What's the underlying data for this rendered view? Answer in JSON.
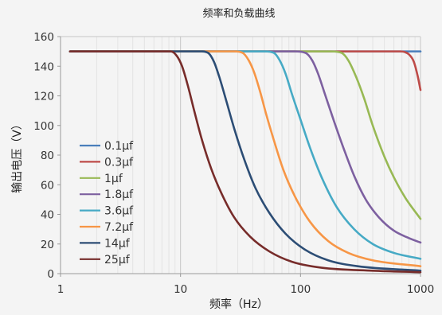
{
  "chart_data": {
    "type": "line",
    "title": "频率和负载曲线",
    "xlabel": "频率（Hz）",
    "ylabel": "输出电压（V）",
    "x_scale": "log",
    "xlim": [
      1,
      1000
    ],
    "ylim": [
      0,
      160
    ],
    "x_ticks": [
      1,
      10,
      100,
      1000
    ],
    "x_tick_labels": [
      "1",
      "10",
      "100",
      "1000"
    ],
    "y_ticks": [
      0,
      20,
      40,
      60,
      80,
      100,
      120,
      140,
      160
    ],
    "y_tick_labels": [
      "0",
      "20",
      "40",
      "60",
      "80",
      "100",
      "120",
      "140",
      "160"
    ],
    "grid": "vertical",
    "legend_position": "left-center",
    "series": [
      {
        "name": "0.1μf",
        "color": "#4a7ebb",
        "points": [
          [
            1.2,
            150
          ],
          [
            10,
            150
          ],
          [
            100,
            150
          ],
          [
            500,
            150
          ],
          [
            1000,
            150
          ]
        ]
      },
      {
        "name": "0.3μf",
        "color": "#be4b48",
        "points": [
          [
            1.2,
            150
          ],
          [
            100,
            150
          ],
          [
            500,
            150
          ],
          [
            680,
            150
          ],
          [
            800,
            148
          ],
          [
            880,
            143
          ],
          [
            950,
            133
          ],
          [
            1000,
            124
          ]
        ]
      },
      {
        "name": "1μf",
        "color": "#98b954",
        "points": [
          [
            1.2,
            150
          ],
          [
            100,
            150
          ],
          [
            180,
            150
          ],
          [
            220,
            149
          ],
          [
            250,
            144
          ],
          [
            290,
            133
          ],
          [
            340,
            118
          ],
          [
            400,
            100
          ],
          [
            500,
            79
          ],
          [
            600,
            65
          ],
          [
            750,
            51
          ],
          [
            1000,
            37
          ]
        ]
      },
      {
        "name": "1.8μf",
        "color": "#7d60a0",
        "points": [
          [
            1.2,
            150
          ],
          [
            90,
            150
          ],
          [
            110,
            149
          ],
          [
            125,
            144
          ],
          [
            140,
            135
          ],
          [
            160,
            121
          ],
          [
            190,
            103
          ],
          [
            230,
            84
          ],
          [
            280,
            66
          ],
          [
            350,
            50
          ],
          [
            450,
            38
          ],
          [
            600,
            29
          ],
          [
            800,
            24
          ],
          [
            1000,
            21
          ]
        ]
      },
      {
        "name": "3.6μf",
        "color": "#46aac5",
        "points": [
          [
            1.2,
            150
          ],
          [
            50,
            150
          ],
          [
            60,
            149
          ],
          [
            67,
            144
          ],
          [
            75,
            135
          ],
          [
            85,
            121
          ],
          [
            100,
            104
          ],
          [
            120,
            85
          ],
          [
            150,
            65
          ],
          [
            200,
            45
          ],
          [
            280,
            30
          ],
          [
            400,
            20
          ],
          [
            600,
            14
          ],
          [
            1000,
            10
          ]
        ]
      },
      {
        "name": "7.2μf",
        "color": "#f79646",
        "points": [
          [
            1.2,
            150
          ],
          [
            28,
            150
          ],
          [
            33,
            149
          ],
          [
            37,
            144
          ],
          [
            41,
            136
          ],
          [
            46,
            123
          ],
          [
            52,
            107
          ],
          [
            60,
            90
          ],
          [
            72,
            70
          ],
          [
            90,
            52
          ],
          [
            120,
            35
          ],
          [
            170,
            22
          ],
          [
            250,
            14
          ],
          [
            400,
            9
          ],
          [
            1000,
            5
          ]
        ]
      },
      {
        "name": "14μf",
        "color": "#2c4d75",
        "points": [
          [
            1.2,
            150
          ],
          [
            12,
            150
          ],
          [
            15,
            150
          ],
          [
            17,
            149
          ],
          [
            19,
            143
          ],
          [
            21,
            133
          ],
          [
            24,
            117
          ],
          [
            28,
            98
          ],
          [
            34,
            77
          ],
          [
            42,
            58
          ],
          [
            55,
            41
          ],
          [
            75,
            27
          ],
          [
            110,
            16
          ],
          [
            170,
            9
          ],
          [
            300,
            5
          ],
          [
            1000,
            2
          ]
        ]
      },
      {
        "name": "25μf",
        "color": "#772c2a",
        "points": [
          [
            1.2,
            150
          ],
          [
            7,
            150
          ],
          [
            8.3,
            150
          ],
          [
            9.3,
            147
          ],
          [
            10.3,
            140
          ],
          [
            11.5,
            127
          ],
          [
            13,
            110
          ],
          [
            15,
            91
          ],
          [
            18,
            71
          ],
          [
            22,
            54
          ],
          [
            28,
            38
          ],
          [
            38,
            25
          ],
          [
            55,
            15
          ],
          [
            85,
            8
          ],
          [
            150,
            4
          ],
          [
            400,
            2
          ],
          [
            1000,
            1
          ]
        ]
      }
    ]
  }
}
